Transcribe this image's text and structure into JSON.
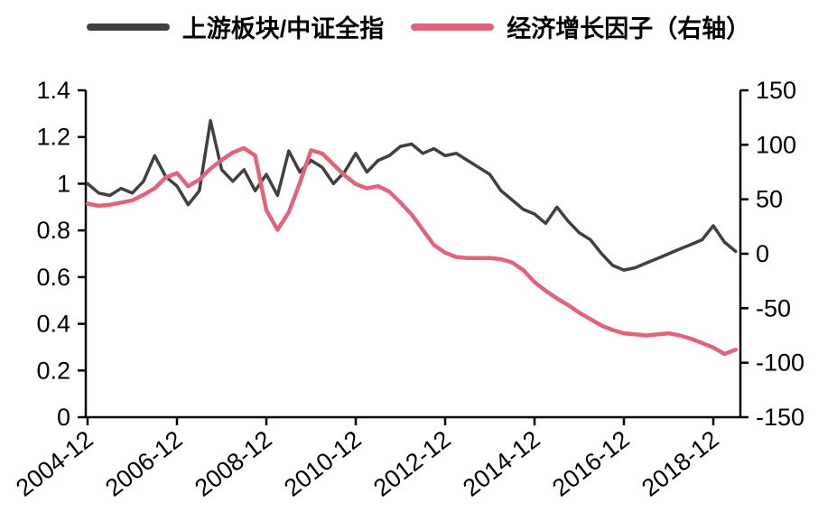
{
  "chart_data": {
    "type": "line",
    "title": "",
    "x_start": "2004-12",
    "x_step_months": 3,
    "x_tick_indices": [
      0,
      8,
      16,
      24,
      32,
      40,
      48,
      56
    ],
    "x_tick_labels": [
      "2004-12",
      "2006-12",
      "2008-12",
      "2010-12",
      "2012-12",
      "2014-12",
      "2016-12",
      "2018-12"
    ],
    "left_axis": {
      "min": 0,
      "max": 1.4,
      "ticks": [
        "0",
        "0.2",
        "0.4",
        "0.6",
        "0.8",
        "1",
        "1.2",
        "1.4"
      ]
    },
    "right_axis": {
      "min": -150,
      "max": 150,
      "ticks": [
        "150",
        "100",
        "50",
        "0",
        "-50",
        "-100",
        "-150"
      ]
    },
    "legend_position": "top-center",
    "grid": false,
    "series": [
      {
        "name": "上游板块/中证全指",
        "axis": "left",
        "color": "#404040",
        "values": [
          1.0,
          0.96,
          0.95,
          0.98,
          0.96,
          1.01,
          1.12,
          1.03,
          0.99,
          0.91,
          0.97,
          1.27,
          1.06,
          1.01,
          1.06,
          0.97,
          1.04,
          0.95,
          1.14,
          1.05,
          1.1,
          1.07,
          1.0,
          1.05,
          1.13,
          1.05,
          1.1,
          1.12,
          1.16,
          1.17,
          1.13,
          1.15,
          1.12,
          1.13,
          1.1,
          1.07,
          1.04,
          0.97,
          0.93,
          0.89,
          0.87,
          0.83,
          0.9,
          0.84,
          0.79,
          0.76,
          0.7,
          0.65,
          0.63,
          0.64,
          0.66,
          0.68,
          0.7,
          0.72,
          0.74,
          0.76,
          0.82,
          0.75,
          0.71
        ]
      },
      {
        "name": "经济增长因子（右轴）",
        "axis": "right",
        "color": "#e2647c",
        "values": [
          46,
          44,
          45,
          47,
          49,
          54,
          60,
          70,
          74,
          62,
          68,
          78,
          86,
          93,
          97,
          90,
          40,
          22,
          38,
          65,
          95,
          92,
          82,
          72,
          64,
          60,
          62,
          57,
          47,
          36,
          22,
          8,
          1,
          -3,
          -4,
          -4,
          -4,
          -5,
          -8,
          -15,
          -26,
          -34,
          -41,
          -47,
          -54,
          -60,
          -66,
          -70,
          -73,
          -74,
          -75,
          -74,
          -73,
          -75,
          -78,
          -82,
          -86,
          -92,
          -88
        ]
      }
    ]
  }
}
